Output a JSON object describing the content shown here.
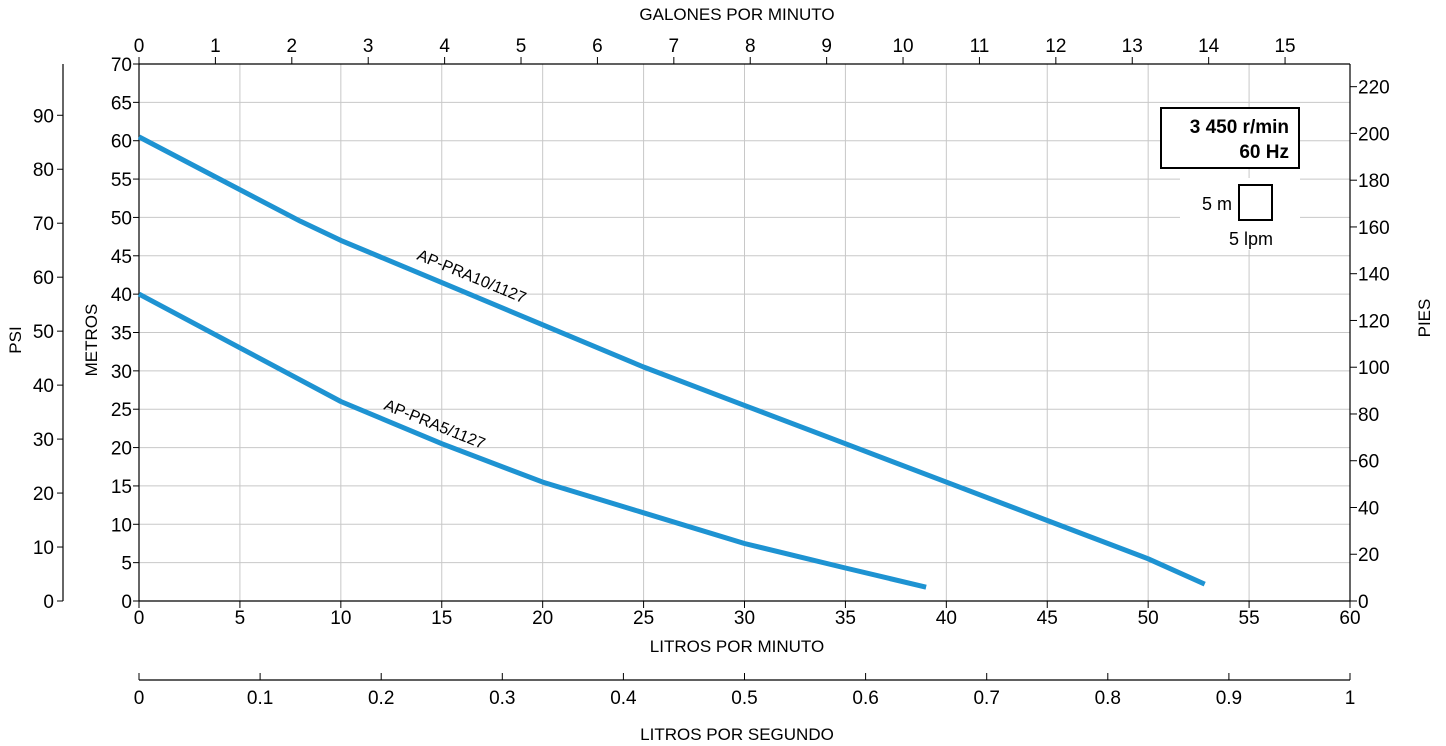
{
  "chart_data": {
    "type": "line",
    "axes": {
      "x_bottom": {
        "label": "LITROS POR MINUTO",
        "range": [
          0,
          60
        ],
        "ticks": [
          0,
          5,
          10,
          15,
          20,
          25,
          30,
          35,
          40,
          45,
          50,
          55,
          60
        ]
      },
      "x_top": {
        "label": "GALONES POR MINUTO",
        "range": [
          0,
          15.85
        ],
        "ticks": [
          0,
          1,
          2,
          3,
          4,
          5,
          6,
          7,
          8,
          9,
          10,
          11,
          12,
          13,
          14,
          15
        ]
      },
      "x_lps": {
        "label": "LITROS POR SEGUNDO",
        "range": [
          0,
          1
        ],
        "ticks": [
          "0",
          "0.1",
          "0.2",
          "0.3",
          "0.4",
          "0.5",
          "0.6",
          "0.7",
          "0.8",
          "0.9",
          "1"
        ]
      },
      "y_left_m": {
        "label": "METROS",
        "range": [
          0,
          70
        ],
        "ticks": [
          0,
          5,
          10,
          15,
          20,
          25,
          30,
          35,
          40,
          45,
          50,
          55,
          60,
          65,
          70
        ]
      },
      "y_left_psi": {
        "label": "PSI",
        "range": [
          0,
          99.5
        ],
        "ticks": [
          0,
          10,
          20,
          30,
          40,
          50,
          60,
          70,
          80,
          90
        ]
      },
      "y_right_ft": {
        "label": "PIES",
        "range": [
          0,
          229.7
        ],
        "ticks": [
          0,
          20,
          40,
          60,
          80,
          100,
          120,
          140,
          160,
          180,
          200,
          220
        ]
      }
    },
    "grid": true,
    "series": [
      {
        "name": "AP-PRA10/1127",
        "color": "#1e93d2",
        "x": [
          0,
          4,
          8,
          10,
          15,
          20,
          25,
          30,
          35,
          40,
          45,
          50,
          52.8
        ],
        "y": [
          60.5,
          55,
          49.5,
          47,
          41.5,
          36,
          30.5,
          25.5,
          20.5,
          15.5,
          10.5,
          5.5,
          2.2
        ]
      },
      {
        "name": "AP-PRA5/1127",
        "color": "#1e93d2",
        "x": [
          0,
          5,
          10,
          15,
          20,
          25,
          30,
          35,
          39
        ],
        "y": [
          40,
          33,
          26,
          20.5,
          15.5,
          11.5,
          7.5,
          4.3,
          1.8
        ]
      }
    ],
    "annotations": {
      "speed_box": [
        "3 450 r/min",
        "60 Hz"
      ],
      "scale_legend": {
        "vertical": "5 m",
        "horizontal": "5 lpm"
      }
    }
  }
}
